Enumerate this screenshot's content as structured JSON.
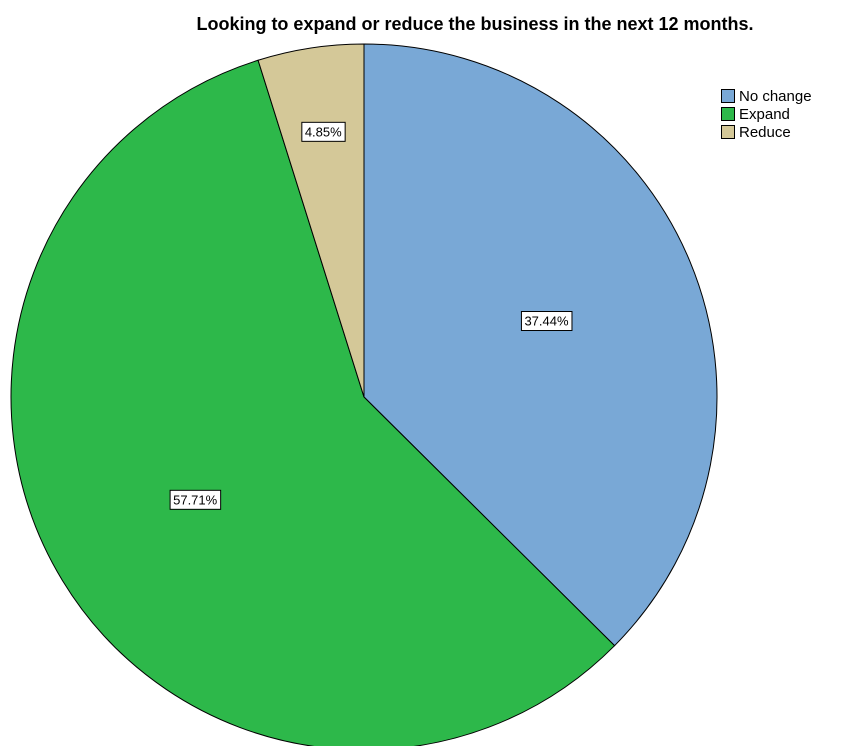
{
  "chart_data": {
    "type": "pie",
    "title": "Looking to expand or reduce the business in the next 12 months.",
    "slices": [
      {
        "label": "No change",
        "value": 37.44,
        "display": "37.44%",
        "color": "#79a8d6"
      },
      {
        "label": "Expand",
        "value": 57.71,
        "display": "57.71%",
        "color": "#2db84a"
      },
      {
        "label": "Reduce",
        "value": 4.85,
        "display": "4.85%",
        "color": "#d4c898"
      }
    ],
    "legend_position": "top-right",
    "start_angle": "12 o'clock",
    "direction": "clockwise"
  }
}
